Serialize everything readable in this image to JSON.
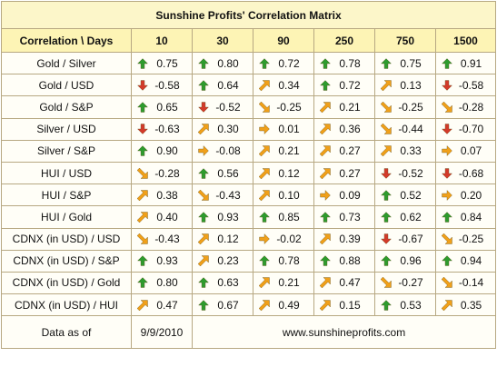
{
  "title": "Sunshine Profits' Correlation Matrix",
  "header": {
    "first": "Correlation \\ Days",
    "days": [
      "10",
      "30",
      "90",
      "250",
      "750",
      "1500"
    ]
  },
  "icon_colors": {
    "up": "#2e9b2e",
    "down": "#d33a2a",
    "diag": "#f0a01a"
  },
  "rows": [
    {
      "label": "Gold / Silver",
      "cells": [
        {
          "v": "0.75",
          "icon": "up-arrow-icon"
        },
        {
          "v": "0.80",
          "icon": "up-arrow-icon"
        },
        {
          "v": "0.72",
          "icon": "up-arrow-icon"
        },
        {
          "v": "0.78",
          "icon": "up-arrow-icon"
        },
        {
          "v": "0.75",
          "icon": "up-arrow-icon"
        },
        {
          "v": "0.91",
          "icon": "up-arrow-icon"
        }
      ]
    },
    {
      "label": "Gold / USD",
      "cells": [
        {
          "v": "-0.58",
          "icon": "down-arrow-icon"
        },
        {
          "v": "0.64",
          "icon": "up-arrow-icon"
        },
        {
          "v": "0.34",
          "icon": "up-right-arrow-icon"
        },
        {
          "v": "0.72",
          "icon": "up-arrow-icon"
        },
        {
          "v": "0.13",
          "icon": "up-right-arrow-icon"
        },
        {
          "v": "-0.58",
          "icon": "down-arrow-icon"
        }
      ]
    },
    {
      "label": "Gold / S&P",
      "cells": [
        {
          "v": "0.65",
          "icon": "up-arrow-icon"
        },
        {
          "v": "-0.52",
          "icon": "down-arrow-icon"
        },
        {
          "v": "-0.25",
          "icon": "down-right-arrow-icon"
        },
        {
          "v": "0.21",
          "icon": "up-right-arrow-icon"
        },
        {
          "v": "-0.25",
          "icon": "down-right-arrow-icon"
        },
        {
          "v": "-0.28",
          "icon": "down-right-arrow-icon"
        }
      ]
    },
    {
      "label": "Silver / USD",
      "cells": [
        {
          "v": "-0.63",
          "icon": "down-arrow-icon"
        },
        {
          "v": "0.30",
          "icon": "up-right-arrow-icon"
        },
        {
          "v": "0.01",
          "icon": "right-arrow-icon"
        },
        {
          "v": "0.36",
          "icon": "up-right-arrow-icon"
        },
        {
          "v": "-0.44",
          "icon": "down-right-arrow-icon"
        },
        {
          "v": "-0.70",
          "icon": "down-arrow-icon"
        }
      ]
    },
    {
      "label": "Silver / S&P",
      "cells": [
        {
          "v": "0.90",
          "icon": "up-arrow-icon"
        },
        {
          "v": "-0.08",
          "icon": "right-arrow-icon"
        },
        {
          "v": "0.21",
          "icon": "up-right-arrow-icon"
        },
        {
          "v": "0.27",
          "icon": "up-right-arrow-icon"
        },
        {
          "v": "0.33",
          "icon": "up-right-arrow-icon"
        },
        {
          "v": "0.07",
          "icon": "right-arrow-icon"
        }
      ]
    },
    {
      "label": "HUI / USD",
      "cells": [
        {
          "v": "-0.28",
          "icon": "down-right-arrow-icon"
        },
        {
          "v": "0.56",
          "icon": "up-arrow-icon"
        },
        {
          "v": "0.12",
          "icon": "up-right-arrow-icon"
        },
        {
          "v": "0.27",
          "icon": "up-right-arrow-icon"
        },
        {
          "v": "-0.52",
          "icon": "down-arrow-icon"
        },
        {
          "v": "-0.68",
          "icon": "down-arrow-icon"
        }
      ]
    },
    {
      "label": "HUI / S&P",
      "cells": [
        {
          "v": "0.38",
          "icon": "up-right-arrow-icon"
        },
        {
          "v": "-0.43",
          "icon": "down-right-arrow-icon"
        },
        {
          "v": "0.10",
          "icon": "up-right-arrow-icon"
        },
        {
          "v": "0.09",
          "icon": "right-arrow-icon"
        },
        {
          "v": "0.52",
          "icon": "up-arrow-icon"
        },
        {
          "v": "0.20",
          "icon": "right-arrow-icon"
        }
      ]
    },
    {
      "label": "HUI / Gold",
      "cells": [
        {
          "v": "0.40",
          "icon": "up-right-arrow-icon"
        },
        {
          "v": "0.93",
          "icon": "up-arrow-icon"
        },
        {
          "v": "0.85",
          "icon": "up-arrow-icon"
        },
        {
          "v": "0.73",
          "icon": "up-arrow-icon"
        },
        {
          "v": "0.62",
          "icon": "up-arrow-icon"
        },
        {
          "v": "0.84",
          "icon": "up-arrow-icon"
        }
      ]
    },
    {
      "label": "CDNX (in USD) / USD",
      "cells": [
        {
          "v": "-0.43",
          "icon": "down-right-arrow-icon"
        },
        {
          "v": "0.12",
          "icon": "up-right-arrow-icon"
        },
        {
          "v": "-0.02",
          "icon": "right-arrow-icon"
        },
        {
          "v": "0.39",
          "icon": "up-right-arrow-icon"
        },
        {
          "v": "-0.67",
          "icon": "down-arrow-icon"
        },
        {
          "v": "-0.25",
          "icon": "down-right-arrow-icon"
        }
      ]
    },
    {
      "label": "CDNX (in USD) / S&P",
      "cells": [
        {
          "v": "0.93",
          "icon": "up-arrow-icon"
        },
        {
          "v": "0.23",
          "icon": "up-right-arrow-icon"
        },
        {
          "v": "0.78",
          "icon": "up-arrow-icon"
        },
        {
          "v": "0.88",
          "icon": "up-arrow-icon"
        },
        {
          "v": "0.96",
          "icon": "up-arrow-icon"
        },
        {
          "v": "0.94",
          "icon": "up-arrow-icon"
        }
      ]
    },
    {
      "label": "CDNX (in USD) / Gold",
      "cells": [
        {
          "v": "0.80",
          "icon": "up-arrow-icon"
        },
        {
          "v": "0.63",
          "icon": "up-arrow-icon"
        },
        {
          "v": "0.21",
          "icon": "up-right-arrow-icon"
        },
        {
          "v": "0.47",
          "icon": "up-right-arrow-icon"
        },
        {
          "v": "-0.27",
          "icon": "down-right-arrow-icon"
        },
        {
          "v": "-0.14",
          "icon": "down-right-arrow-icon"
        }
      ]
    },
    {
      "label": "CDNX (in USD) / HUI",
      "cells": [
        {
          "v": "0.47",
          "icon": "up-right-arrow-icon"
        },
        {
          "v": "0.67",
          "icon": "up-arrow-icon"
        },
        {
          "v": "0.49",
          "icon": "up-right-arrow-icon"
        },
        {
          "v": "0.15",
          "icon": "up-right-arrow-icon"
        },
        {
          "v": "0.53",
          "icon": "up-arrow-icon"
        },
        {
          "v": "0.35",
          "icon": "up-right-arrow-icon"
        }
      ]
    }
  ],
  "footer": {
    "label": "Data as of",
    "date": "9/9/2010",
    "site": "www.sunshineprofits.com"
  }
}
